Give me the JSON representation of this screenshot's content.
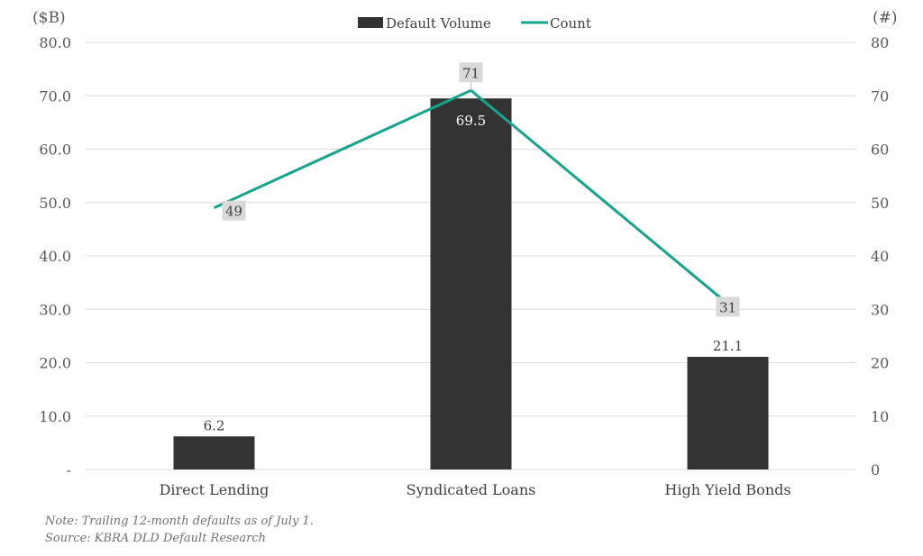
{
  "chart_data": {
    "type": "bar+line",
    "categories": [
      "Direct Lending",
      "Syndicated Loans",
      "High Yield Bonds"
    ],
    "series": [
      {
        "name": "Default Volume",
        "type": "bar",
        "axis": "left",
        "values": [
          6.2,
          69.5,
          21.1
        ],
        "labels": [
          "6.2",
          "69.5",
          "21.1"
        ],
        "color": "#333333"
      },
      {
        "name": "Count",
        "type": "line",
        "axis": "right",
        "values": [
          49,
          71,
          31
        ],
        "labels": [
          "49",
          "71",
          "31"
        ],
        "color": "#16a58c"
      }
    ],
    "y_left": {
      "label": "($B)",
      "range": [
        0,
        80
      ],
      "ticks": [
        "-",
        "10.0",
        "20.0",
        "30.0",
        "40.0",
        "50.0",
        "60.0",
        "70.0",
        "80.0"
      ]
    },
    "y_right": {
      "label": "(#)",
      "range": [
        0,
        80
      ],
      "ticks": [
        "0",
        "10",
        "20",
        "30",
        "40",
        "50",
        "60",
        "70",
        "80"
      ]
    },
    "grid": true,
    "legend": "top-center"
  },
  "notes": [
    "Note: Trailing 12-month defaults as of July 1.",
    "Source: KBRA DLD Default Research"
  ]
}
